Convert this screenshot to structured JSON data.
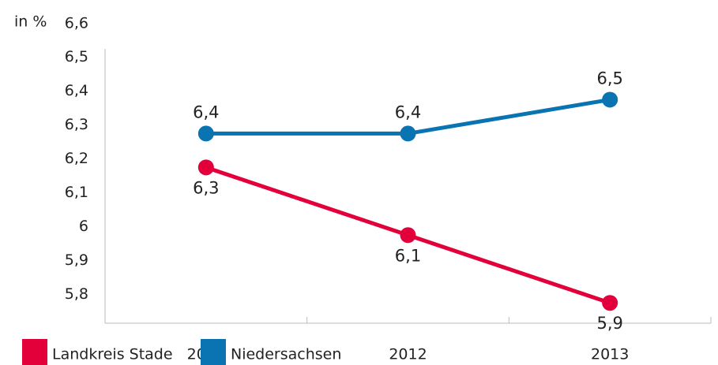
{
  "chart_data": {
    "type": "line",
    "y_label": "in %",
    "categories": [
      "2011",
      "2012",
      "2013"
    ],
    "series": [
      {
        "name": "Landkreis Stade",
        "color": "#e3003a",
        "values": [
          6.3,
          6.1,
          5.9
        ],
        "value_labels": [
          "6,3",
          "6,1",
          "5,9"
        ]
      },
      {
        "name": "Niedersachsen",
        "color": "#0a74b3",
        "values": [
          6.4,
          6.4,
          6.5
        ],
        "value_labels": [
          "6,4",
          "6,4",
          "6,5"
        ]
      }
    ],
    "ylim": [
      5.84,
      6.65
    ],
    "yticks": [
      {
        "value": 6.6,
        "label": "6,6"
      },
      {
        "value": 6.5,
        "label": "6,5"
      },
      {
        "value": 6.4,
        "label": "6,4"
      },
      {
        "value": 6.3,
        "label": "6,3"
      },
      {
        "value": 6.2,
        "label": "6,2"
      },
      {
        "value": 6.1,
        "label": "6,1"
      },
      6,
      {
        "value": 5.9,
        "label": "5,9"
      },
      {
        "value": 5.8,
        "label": "5,8"
      }
    ],
    "legend": "bottom-left"
  }
}
